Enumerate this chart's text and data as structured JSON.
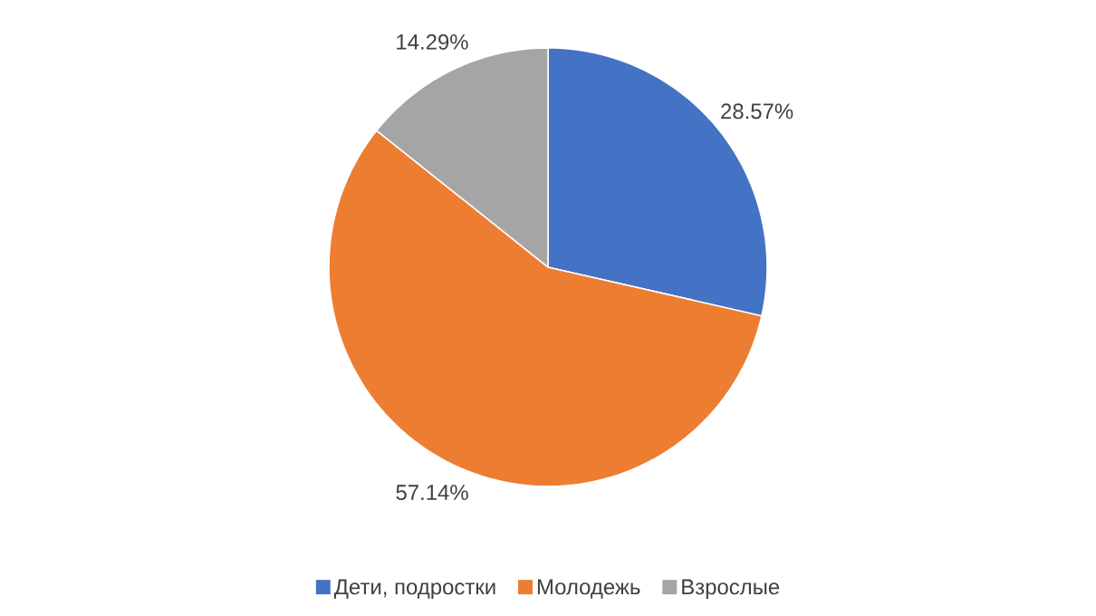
{
  "chart_data": {
    "type": "pie",
    "categories": [
      "Дети, подростки",
      "Молодежь",
      "Взрослые"
    ],
    "values": [
      28.57,
      57.14,
      14.29
    ],
    "value_labels": [
      "28.57%",
      "57.14%",
      "14.29%"
    ],
    "colors": [
      "#4472c4",
      "#ed7d31",
      "#a5a5a5"
    ],
    "legend": "bottom"
  }
}
